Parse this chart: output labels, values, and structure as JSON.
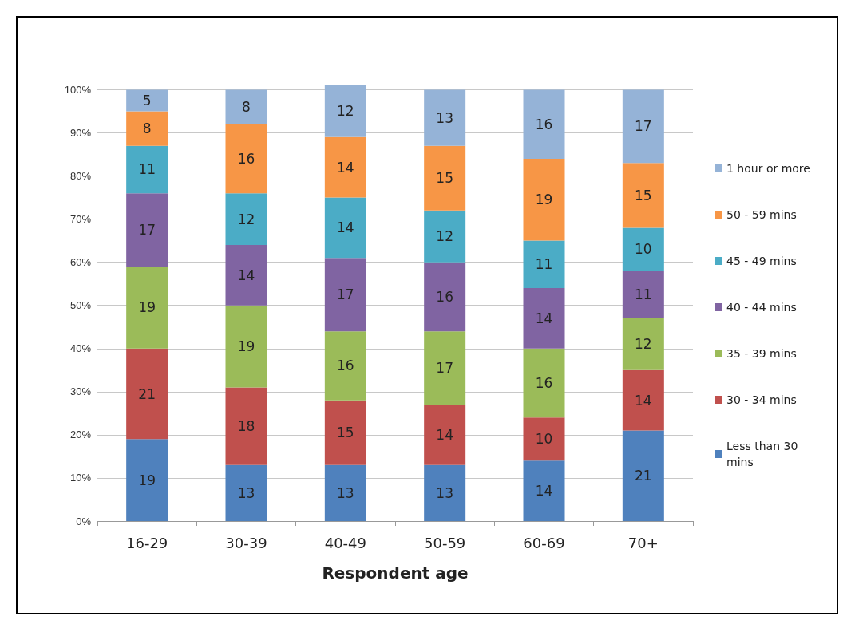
{
  "chart_data": {
    "type": "bar",
    "stacked": true,
    "xlabel": "Respondent age",
    "categories": [
      "16-29",
      "30-39",
      "40-49",
      "50-59",
      "60-69",
      "70+"
    ],
    "series": [
      {
        "name": "Less than 30 mins",
        "color": "#4f81bd",
        "values": [
          19,
          13,
          13,
          13,
          14,
          21
        ]
      },
      {
        "name": "30 - 34 mins",
        "color": "#c0504d",
        "values": [
          21,
          18,
          15,
          14,
          10,
          14
        ]
      },
      {
        "name": "35 - 39 mins",
        "color": "#9bbb59",
        "values": [
          19,
          19,
          16,
          17,
          16,
          12
        ]
      },
      {
        "name": "40 - 44 mins",
        "color": "#8064a2",
        "values": [
          17,
          14,
          17,
          16,
          14,
          11
        ]
      },
      {
        "name": "45 - 49 mins",
        "color": "#4bacc6",
        "values": [
          11,
          12,
          14,
          12,
          11,
          10
        ]
      },
      {
        "name": "50 - 59 mins",
        "color": "#f79646",
        "values": [
          8,
          16,
          14,
          15,
          19,
          15
        ]
      },
      {
        "name": "1 hour or more",
        "color": "#95b3d7",
        "values": [
          5,
          8,
          12,
          13,
          16,
          17
        ]
      }
    ],
    "ylim": [
      0,
      101
    ],
    "yticks": [
      {
        "value": 0,
        "label": "0%"
      },
      {
        "value": 10,
        "label": "10%"
      },
      {
        "value": 20,
        "label": "20%"
      },
      {
        "value": 30,
        "label": "30%"
      },
      {
        "value": 40,
        "label": "40%"
      },
      {
        "value": 50,
        "label": "50%"
      },
      {
        "value": 60,
        "label": "60%"
      },
      {
        "value": 70,
        "label": "70%"
      },
      {
        "value": 80,
        "label": "80%"
      },
      {
        "value": 90,
        "label": "90%"
      },
      {
        "value": 100,
        "label": "100%"
      }
    ],
    "grid": "y",
    "legend": "right",
    "data_labels": true
  }
}
